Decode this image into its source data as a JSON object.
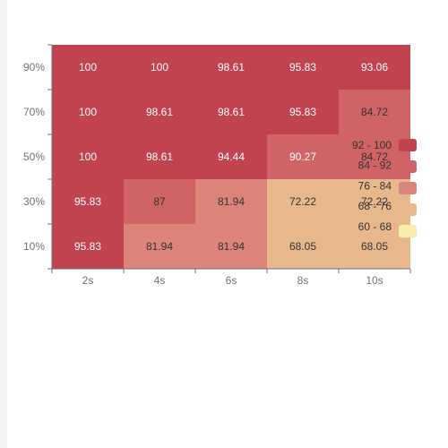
{
  "chart_data": {
    "type": "heatmap",
    "title": "",
    "xlabel": "",
    "ylabel": "",
    "x_categories": [
      "2s",
      "4s",
      "6s",
      "8s",
      "10s"
    ],
    "y_categories": [
      "10%",
      "30%",
      "50%",
      "70%",
      "90%"
    ],
    "values": [
      [
        95.83,
        81.94,
        81.94,
        68.05,
        68.05
      ],
      [
        95.83,
        87,
        81.94,
        72.22,
        72.22
      ],
      [
        100,
        98.61,
        94.44,
        90.27,
        84.72
      ],
      [
        100,
        98.61,
        98.61,
        95.83,
        84.72
      ],
      [
        100,
        100,
        98.61,
        95.83,
        93.06
      ]
    ],
    "value_labels": [
      [
        "95.83",
        "81.94",
        "81.94",
        "68.05",
        "68.05"
      ],
      [
        "95.83",
        "87",
        "81.94",
        "72.22",
        "72.22"
      ],
      [
        "100",
        "98.61",
        "94.44",
        "90.27",
        "84.72"
      ],
      [
        "100",
        "98.61",
        "98.61",
        "95.83",
        "84.72"
      ],
      [
        "100",
        "100",
        "98.61",
        "95.83",
        "93.06"
      ]
    ],
    "legend": {
      "position": "right",
      "pieces": [
        {
          "label": "92 - 100",
          "min": 92,
          "max": 100,
          "color": "#c1434f"
        },
        {
          "label": "84 - 92",
          "min": 84,
          "max": 92,
          "color": "#cf6365"
        },
        {
          "label": "76 - 84",
          "min": 76,
          "max": 84,
          "color": "#dc8479"
        },
        {
          "label": "68 - 76",
          "min": 68,
          "max": 76,
          "color": "#e8b88d"
        },
        {
          "label": "60 - 68",
          "min": 60,
          "max": 68,
          "color": "#f5eda8"
        }
      ]
    },
    "dark_label_color": "#333333",
    "light_label_color": "#ffffff",
    "axis_color": "#6e7079",
    "grid": false
  }
}
